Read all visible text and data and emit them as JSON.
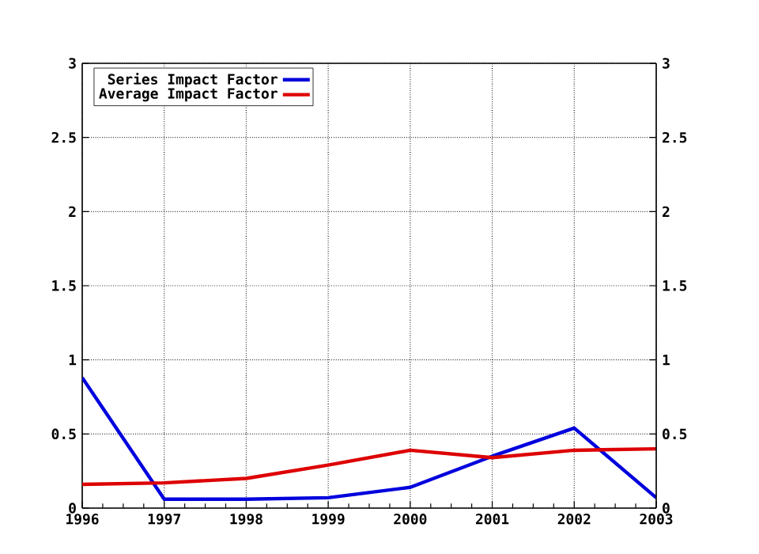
{
  "chart_data": {
    "type": "line",
    "x": [
      1996,
      1997,
      1998,
      1999,
      2000,
      2001,
      2002,
      2003
    ],
    "series": [
      {
        "name": "Series Impact Factor",
        "color": "#0000dd",
        "values": [
          0.88,
          0.06,
          0.06,
          0.07,
          0.14,
          0.35,
          0.54,
          0.07
        ]
      },
      {
        "name": "Average Impact Factor",
        "color": "#dd0000",
        "values": [
          0.16,
          0.17,
          0.2,
          0.29,
          0.39,
          0.34,
          0.39,
          0.4
        ]
      }
    ],
    "xlim": [
      1996,
      2003
    ],
    "xticks": [
      1996,
      1997,
      1998,
      1999,
      2000,
      2001,
      2002,
      2003
    ],
    "ylim": [
      0,
      3
    ],
    "yticks": [
      0,
      0.5,
      1,
      1.5,
      2,
      2.5,
      3
    ],
    "y2lim": [
      0,
      3
    ],
    "y2ticks": [
      0,
      0.5,
      1,
      1.5,
      2,
      2.5,
      3
    ],
    "grid": true,
    "legend": "top left",
    "line_style": "solid",
    "marker": "none"
  }
}
